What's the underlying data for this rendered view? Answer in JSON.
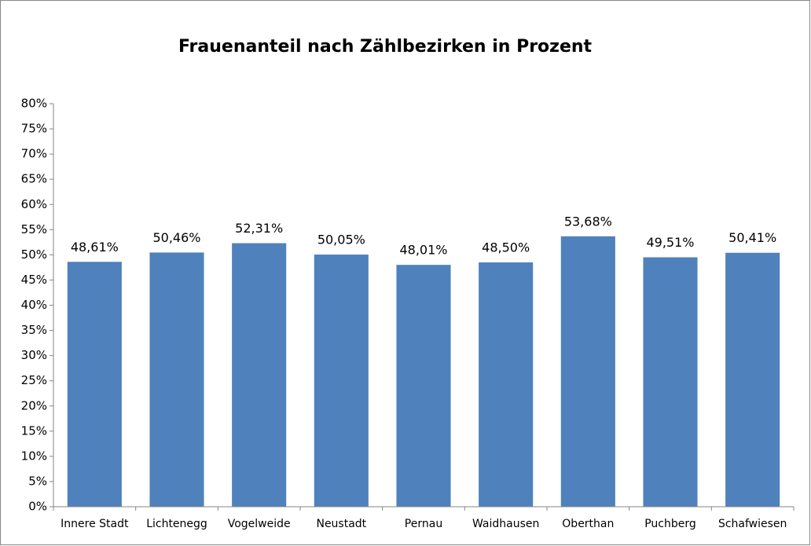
{
  "chart_data": {
    "type": "bar",
    "title": "Frauenanteil nach Zählbezirken in Prozent",
    "categories": [
      "Innere Stadt",
      "Lichtenegg",
      "Vogelweide",
      "Neustadt",
      "Pernau",
      "Waidhausen",
      "Oberthan",
      "Puchberg",
      "Schafwiesen"
    ],
    "values": [
      48.61,
      50.46,
      52.31,
      50.05,
      48.01,
      48.5,
      53.68,
      49.51,
      50.41
    ],
    "value_labels": [
      "48,61%",
      "50,46%",
      "52,31%",
      "50,05%",
      "48,01%",
      "48,50%",
      "53,68%",
      "49,51%",
      "50,41%"
    ],
    "color": "#4f81bd",
    "ylim": [
      0,
      80
    ],
    "yticks": [
      {
        "value": 0,
        "label": "0%"
      },
      {
        "value": 5,
        "label": "5%"
      },
      {
        "value": 10,
        "label": "10%"
      },
      {
        "value": 15,
        "label": "15%"
      },
      {
        "value": 20,
        "label": "20%"
      },
      {
        "value": 25,
        "label": "25%"
      },
      {
        "value": 30,
        "label": "30%"
      },
      {
        "value": 35,
        "label": "35%"
      },
      {
        "value": 40,
        "label": "40%"
      },
      {
        "value": 45,
        "label": "45%"
      },
      {
        "value": 50,
        "label": "50%"
      },
      {
        "value": 55,
        "label": "55%"
      },
      {
        "value": 60,
        "label": "60%"
      },
      {
        "value": 65,
        "label": "65%"
      },
      {
        "value": 70,
        "label": "70%"
      },
      {
        "value": 75,
        "label": "75%"
      },
      {
        "value": 80,
        "label": "80%"
      }
    ],
    "grid": false
  }
}
